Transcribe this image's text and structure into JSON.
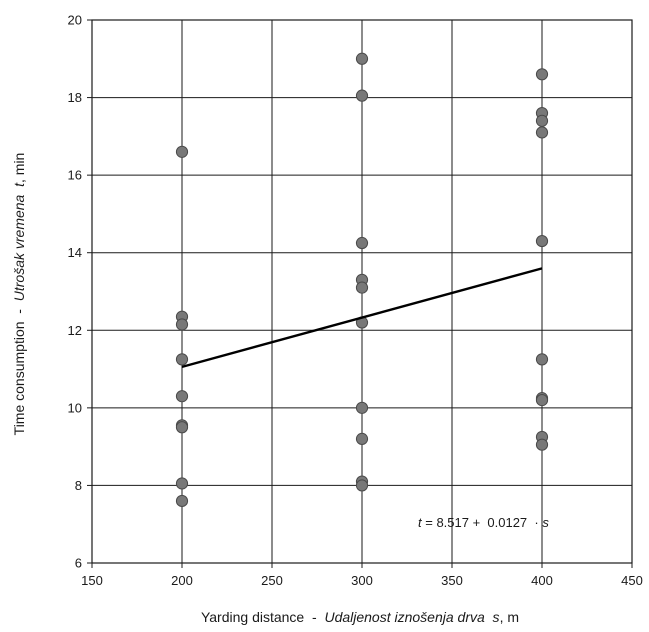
{
  "chart_data": {
    "type": "scatter",
    "xlabel": {
      "prefix": "Yarding distance  -  ",
      "italic": "Udaljenost iznošenja drva  s",
      "suffix": ", m"
    },
    "ylabel": {
      "prefix": "Time consumption  -  ",
      "italic": "Utrošak vremena  t",
      "suffix": ", min"
    },
    "xlim": [
      150,
      450
    ],
    "ylim": [
      6,
      20
    ],
    "xticks": [
      150,
      200,
      250,
      300,
      350,
      400,
      450
    ],
    "yticks": [
      6,
      8,
      10,
      12,
      14,
      16,
      18,
      20
    ],
    "grid": true,
    "points": [
      {
        "x": 200,
        "y": 16.6
      },
      {
        "x": 200,
        "y": 12.35
      },
      {
        "x": 200,
        "y": 12.15
      },
      {
        "x": 200,
        "y": 11.25
      },
      {
        "x": 200,
        "y": 10.3
      },
      {
        "x": 200,
        "y": 9.55
      },
      {
        "x": 200,
        "y": 9.5
      },
      {
        "x": 200,
        "y": 8.05
      },
      {
        "x": 200,
        "y": 7.6
      },
      {
        "x": 300,
        "y": 19.0
      },
      {
        "x": 300,
        "y": 18.05
      },
      {
        "x": 300,
        "y": 14.25
      },
      {
        "x": 300,
        "y": 13.3
      },
      {
        "x": 300,
        "y": 13.1
      },
      {
        "x": 300,
        "y": 12.2
      },
      {
        "x": 300,
        "y": 10.0
      },
      {
        "x": 300,
        "y": 9.2
      },
      {
        "x": 300,
        "y": 8.1
      },
      {
        "x": 300,
        "y": 8.0
      },
      {
        "x": 400,
        "y": 18.6
      },
      {
        "x": 400,
        "y": 17.6
      },
      {
        "x": 400,
        "y": 17.4
      },
      {
        "x": 400,
        "y": 17.1
      },
      {
        "x": 400,
        "y": 14.3
      },
      {
        "x": 400,
        "y": 11.25
      },
      {
        "x": 400,
        "y": 10.25
      },
      {
        "x": 400,
        "y": 10.2
      },
      {
        "x": 400,
        "y": 9.25
      },
      {
        "x": 400,
        "y": 9.05
      }
    ],
    "trendline": {
      "intercept": 8.517,
      "slope": 0.0127,
      "x_range": [
        200,
        400
      ]
    },
    "equation": {
      "lhs": "t",
      "rhs_text": " = 8.517 +  0.0127  · ",
      "var": "s"
    },
    "colors": {
      "point_fill": "#787878",
      "point_stroke": "#4a4a4a",
      "line": "#000000",
      "grid": "#1a1a1a"
    }
  }
}
